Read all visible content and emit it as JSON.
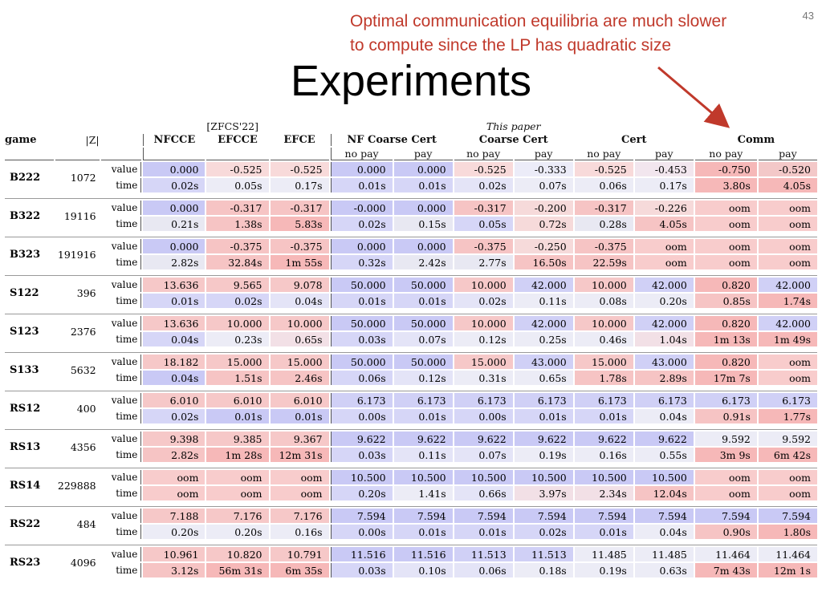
{
  "slide_number": "43",
  "annotation": {
    "line1": "Optimal communication equilibria are much slower",
    "line2": "to compute since the LP has quadratic size"
  },
  "title": "Experiments",
  "colors": {
    "annotation": "#c0392b",
    "arrow": "#c0392b"
  },
  "table": {
    "headers": {
      "game": "game",
      "size": "|Z|",
      "zfcs": "[ZFCS'22]",
      "this_paper": "This paper",
      "cols": [
        "NFCCE",
        "EFCCE",
        "EFCE",
        "NF Coarse Cert",
        "Coarse Cert",
        "Cert",
        "Comm"
      ],
      "sub": [
        "no pay",
        "pay",
        "no pay",
        "pay",
        "no pay",
        "pay",
        "no pay",
        "pay"
      ]
    },
    "rows": [
      {
        "game": "B222",
        "size": "1072",
        "value": [
          "0.000",
          "-0.525",
          "-0.525",
          "0.000",
          "0.000",
          "-0.525",
          "-0.333",
          "-0.525",
          "-0.453",
          "-0.750",
          "-0.520"
        ],
        "time": [
          "0.02s",
          "0.05s",
          "0.17s",
          "0.01s",
          "0.01s",
          "0.02s",
          "0.07s",
          "0.06s",
          "0.17s",
          "3.80s",
          "4.05s"
        ]
      },
      {
        "game": "B322",
        "size": "19116",
        "value": [
          "0.000",
          "-0.317",
          "-0.317",
          "-0.000",
          "0.000",
          "-0.317",
          "-0.200",
          "-0.317",
          "-0.226",
          "oom",
          "oom"
        ],
        "time": [
          "0.21s",
          "1.38s",
          "5.83s",
          "0.02s",
          "0.15s",
          "0.05s",
          "0.72s",
          "0.28s",
          "4.05s",
          "oom",
          "oom"
        ]
      },
      {
        "game": "B323",
        "size": "191916",
        "value": [
          "0.000",
          "-0.375",
          "-0.375",
          "0.000",
          "0.000",
          "-0.375",
          "-0.250",
          "-0.375",
          "oom",
          "oom",
          "oom"
        ],
        "time": [
          "2.82s",
          "32.84s",
          "1m 55s",
          "0.32s",
          "2.42s",
          "2.77s",
          "16.50s",
          "22.59s",
          "oom",
          "oom",
          "oom"
        ]
      },
      {
        "game": "S122",
        "size": "396",
        "value": [
          "13.636",
          "9.565",
          "9.078",
          "50.000",
          "50.000",
          "10.000",
          "42.000",
          "10.000",
          "42.000",
          "0.820",
          "42.000"
        ],
        "time": [
          "0.01s",
          "0.02s",
          "0.04s",
          "0.01s",
          "0.01s",
          "0.02s",
          "0.11s",
          "0.08s",
          "0.20s",
          "0.85s",
          "1.74s"
        ]
      },
      {
        "game": "S123",
        "size": "2376",
        "value": [
          "13.636",
          "10.000",
          "10.000",
          "50.000",
          "50.000",
          "10.000",
          "42.000",
          "10.000",
          "42.000",
          "0.820",
          "42.000"
        ],
        "time": [
          "0.04s",
          "0.23s",
          "0.65s",
          "0.03s",
          "0.07s",
          "0.12s",
          "0.25s",
          "0.46s",
          "1.04s",
          "1m 13s",
          "1m 49s"
        ]
      },
      {
        "game": "S133",
        "size": "5632",
        "value": [
          "18.182",
          "15.000",
          "15.000",
          "50.000",
          "50.000",
          "15.000",
          "43.000",
          "15.000",
          "43.000",
          "0.820",
          "oom"
        ],
        "time": [
          "0.04s",
          "1.51s",
          "2.46s",
          "0.06s",
          "0.12s",
          "0.31s",
          "0.65s",
          "1.78s",
          "2.89s",
          "17m 7s",
          "oom"
        ]
      },
      {
        "game": "RS12",
        "size": "400",
        "value": [
          "6.010",
          "6.010",
          "6.010",
          "6.173",
          "6.173",
          "6.173",
          "6.173",
          "6.173",
          "6.173",
          "6.173",
          "6.173"
        ],
        "time": [
          "0.02s",
          "0.01s",
          "0.01s",
          "0.00s",
          "0.01s",
          "0.00s",
          "0.01s",
          "0.01s",
          "0.04s",
          "0.91s",
          "1.77s"
        ]
      },
      {
        "game": "RS13",
        "size": "4356",
        "value": [
          "9.398",
          "9.385",
          "9.367",
          "9.622",
          "9.622",
          "9.622",
          "9.622",
          "9.622",
          "9.622",
          "9.592",
          "9.592"
        ],
        "time": [
          "2.82s",
          "1m 28s",
          "12m 31s",
          "0.03s",
          "0.11s",
          "0.07s",
          "0.19s",
          "0.16s",
          "0.55s",
          "3m 9s",
          "6m 42s"
        ]
      },
      {
        "game": "RS14",
        "size": "229888",
        "value": [
          "oom",
          "oom",
          "oom",
          "10.500",
          "10.500",
          "10.500",
          "10.500",
          "10.500",
          "10.500",
          "oom",
          "oom"
        ],
        "time": [
          "oom",
          "oom",
          "oom",
          "0.20s",
          "1.41s",
          "0.66s",
          "3.97s",
          "2.34s",
          "12.04s",
          "oom",
          "oom"
        ]
      },
      {
        "game": "RS22",
        "size": "484",
        "value": [
          "7.188",
          "7.176",
          "7.176",
          "7.594",
          "7.594",
          "7.594",
          "7.594",
          "7.594",
          "7.594",
          "7.594",
          "7.594"
        ],
        "time": [
          "0.20s",
          "0.20s",
          "0.16s",
          "0.00s",
          "0.01s",
          "0.01s",
          "0.02s",
          "0.01s",
          "0.04s",
          "0.90s",
          "1.80s"
        ]
      },
      {
        "game": "RS23",
        "size": "4096",
        "value": [
          "10.961",
          "10.820",
          "10.791",
          "11.516",
          "11.516",
          "11.513",
          "11.513",
          "11.485",
          "11.485",
          "11.464",
          "11.464"
        ],
        "time": [
          "3.12s",
          "56m 31s",
          "6m 35s",
          "0.03s",
          "0.10s",
          "0.06s",
          "0.18s",
          "0.19s",
          "0.63s",
          "7m 43s",
          "12m 1s"
        ]
      }
    ],
    "row_labels": {
      "value": "value",
      "time": "time"
    },
    "cell_colors": {
      "B222": {
        "value": [
          "#c9c9f5",
          "#f8dada",
          "#f8dada",
          "#c9c9f5",
          "#c9c9f5",
          "#f8dada",
          "#ececf8",
          "#f8dada",
          "#f2e6ee",
          "#f6b8b8",
          "#f3c8c8"
        ],
        "time": [
          "#d6d6f7",
          "#ececf6",
          "#ececf6",
          "#d6d6f7",
          "#d6d6f7",
          "#e4e4f7",
          "#ececf6",
          "#ececf6",
          "#ececf6",
          "#f6b8b8",
          "#f6b8b8"
        ]
      },
      "B322": {
        "value": [
          "#c9c9f5",
          "#f6c4c4",
          "#f6c4c4",
          "#c9c9f5",
          "#c9c9f5",
          "#f6c4c4",
          "#f6dada",
          "#f6c4c4",
          "#f6dada",
          "#f8cccc",
          "#f8cccc"
        ],
        "time": [
          "#e8e8f2",
          "#f6c4c4",
          "#f6b8b8",
          "#d6d6f7",
          "#e8e8f2",
          "#d6d6f7",
          "#f6dada",
          "#e8e8f2",
          "#f6c4c4",
          "#f8cccc",
          "#f8cccc"
        ]
      },
      "B323": {
        "value": [
          "#c9c9f5",
          "#f6c4c4",
          "#f6c4c4",
          "#c9c9f5",
          "#c9c9f5",
          "#f6c4c4",
          "#f6dada",
          "#f6c4c4",
          "#f8cccc",
          "#f8cccc",
          "#f8cccc"
        ],
        "time": [
          "#e8e8f2",
          "#f6c4c4",
          "#f6b8b8",
          "#d6d6f7",
          "#e8e8f2",
          "#e8e8f2",
          "#f6c4c4",
          "#f6c4c4",
          "#f8cccc",
          "#f8cccc",
          "#f8cccc"
        ]
      },
      "S122": {
        "value": [
          "#f6c8c8",
          "#f6c8c8",
          "#f6c8c8",
          "#c9c9f5",
          "#c9c9f5",
          "#f6c8c8",
          "#d0d0f6",
          "#f6c8c8",
          "#d0d0f6",
          "#f6b8b8",
          "#d0d0f6"
        ],
        "time": [
          "#d6d6f7",
          "#d6d6f7",
          "#e4e4f7",
          "#d6d6f7",
          "#d6d6f7",
          "#e4e4f7",
          "#ececf6",
          "#ececf6",
          "#ececf6",
          "#f6c4c4",
          "#f6b8b8"
        ]
      },
      "S123": {
        "value": [
          "#f6c8c8",
          "#f6c8c8",
          "#f6c8c8",
          "#c9c9f5",
          "#c9c9f5",
          "#f6c8c8",
          "#d0d0f6",
          "#f6c8c8",
          "#d0d0f6",
          "#f6b8b8",
          "#d0d0f6"
        ],
        "time": [
          "#d6d6f7",
          "#ececf6",
          "#f2e0e6",
          "#d6d6f7",
          "#e4e4f7",
          "#ececf6",
          "#ececf6",
          "#ececf6",
          "#f2e0e6",
          "#f6b8b8",
          "#f6b8b8"
        ]
      },
      "S133": {
        "value": [
          "#f6c8c8",
          "#f6c8c8",
          "#f6c8c8",
          "#c9c9f5",
          "#c9c9f5",
          "#f6c8c8",
          "#d0d0f6",
          "#f6c8c8",
          "#d0d0f6",
          "#f6b8b8",
          "#f8cccc"
        ],
        "time": [
          "#c9c9f5",
          "#f6c4c4",
          "#f6c4c4",
          "#d6d6f7",
          "#e4e4f7",
          "#ececf6",
          "#ececf6",
          "#f6c4c4",
          "#f6c4c4",
          "#f6b8b8",
          "#f8cccc"
        ]
      },
      "RS12": {
        "value": [
          "#f6c8c8",
          "#f6c8c8",
          "#f6c8c8",
          "#d0d0f6",
          "#d0d0f6",
          "#d0d0f6",
          "#d0d0f6",
          "#d0d0f6",
          "#d0d0f6",
          "#d0d0f6",
          "#d0d0f6"
        ],
        "time": [
          "#d6d6f7",
          "#c9c9f5",
          "#c9c9f5",
          "#d6d6f7",
          "#d6d6f7",
          "#d6d6f7",
          "#d6d6f7",
          "#d6d6f7",
          "#ececf6",
          "#f6c4c4",
          "#f6b8b8"
        ]
      },
      "RS13": {
        "value": [
          "#f6c8c8",
          "#f6c8c8",
          "#f6c8c8",
          "#c9c9f5",
          "#c9c9f5",
          "#c9c9f5",
          "#c9c9f5",
          "#c9c9f5",
          "#c9c9f5",
          "#ececf6",
          "#ececf6"
        ],
        "time": [
          "#f6c4c4",
          "#f6b8b8",
          "#f6b8b8",
          "#d6d6f7",
          "#e4e4f7",
          "#e4e4f7",
          "#ececf6",
          "#ececf6",
          "#ececf6",
          "#f6b8b8",
          "#f6b8b8"
        ]
      },
      "RS14": {
        "value": [
          "#f8cccc",
          "#f8cccc",
          "#f8cccc",
          "#c9c9f5",
          "#c9c9f5",
          "#c9c9f5",
          "#c9c9f5",
          "#c9c9f5",
          "#c9c9f5",
          "#f8cccc",
          "#f8cccc"
        ],
        "time": [
          "#f8cccc",
          "#f8cccc",
          "#f8cccc",
          "#d6d6f7",
          "#ececf6",
          "#e4e4f7",
          "#f2e0e6",
          "#f2e0e6",
          "#f6c4c4",
          "#f8cccc",
          "#f8cccc"
        ]
      },
      "RS22": {
        "value": [
          "#f6c8c8",
          "#f6c8c8",
          "#f6c8c8",
          "#c9c9f5",
          "#c9c9f5",
          "#c9c9f5",
          "#c9c9f5",
          "#c9c9f5",
          "#c9c9f5",
          "#c9c9f5",
          "#c9c9f5"
        ],
        "time": [
          "#ececf6",
          "#ececf6",
          "#ececf6",
          "#d6d6f7",
          "#d6d6f7",
          "#d6d6f7",
          "#d6d6f7",
          "#d6d6f7",
          "#ececf6",
          "#f6c4c4",
          "#f6b8b8"
        ]
      },
      "RS23": {
        "value": [
          "#f6c8c8",
          "#f6c8c8",
          "#f6c8c8",
          "#c9c9f5",
          "#c9c9f5",
          "#d0d0f6",
          "#d0d0f6",
          "#ececf6",
          "#ececf6",
          "#ececf6",
          "#ececf6"
        ],
        "time": [
          "#f6c4c4",
          "#f6b8b8",
          "#f6b8b8",
          "#d6d6f7",
          "#e4e4f7",
          "#e4e4f7",
          "#ececf6",
          "#ececf6",
          "#ececf6",
          "#f6b8b8",
          "#f6b8b8"
        ]
      }
    }
  }
}
